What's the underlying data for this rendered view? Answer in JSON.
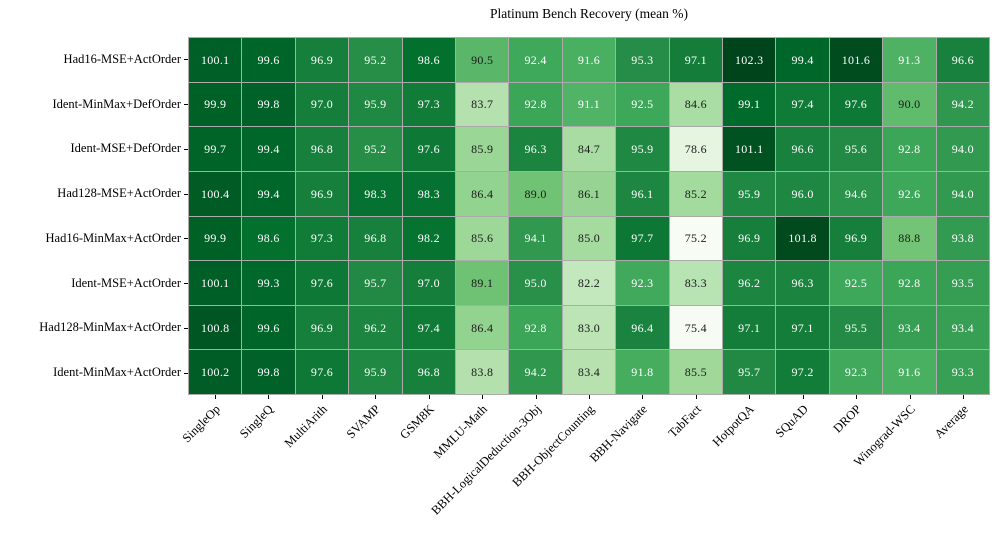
{
  "figure": {
    "background": "#ffffff",
    "text_color": "#000000"
  },
  "chart_data": {
    "type": "heatmap",
    "title": "Platinum Bench Recovery (mean %)",
    "rows": [
      "Had16-MSE+ActOrder",
      "Ident-MinMax+DefOrder",
      "Ident-MSE+DefOrder",
      "Had128-MSE+ActOrder",
      "Had16-MinMax+ActOrder",
      "Ident-MSE+ActOrder",
      "Had128-MinMax+ActOrder",
      "Ident-MinMax+ActOrder"
    ],
    "columns": [
      "SingleOp",
      "SingleQ",
      "MultiArith",
      "SVAMP",
      "GSM8K",
      "MMLU-Math",
      "BBH-LogicalDeduction-3Obj",
      "BBH-ObjectCounting",
      "BBH-Navigate",
      "TabFact",
      "HotpotQA",
      "SQuAD",
      "DROP",
      "Winograd-WSC",
      "Average"
    ],
    "values": [
      [
        100.1,
        99.6,
        96.9,
        95.2,
        98.6,
        90.5,
        92.4,
        91.6,
        95.3,
        97.1,
        102.3,
        99.4,
        101.6,
        91.3,
        96.6
      ],
      [
        99.9,
        99.8,
        97.0,
        95.9,
        97.3,
        83.7,
        92.8,
        91.1,
        92.5,
        84.6,
        99.1,
        97.4,
        97.6,
        90.0,
        94.2
      ],
      [
        99.7,
        99.4,
        96.8,
        95.2,
        97.6,
        85.9,
        96.3,
        84.7,
        95.9,
        78.6,
        101.1,
        96.6,
        95.6,
        92.8,
        94.0
      ],
      [
        100.4,
        99.4,
        96.9,
        98.3,
        98.3,
        86.4,
        89.0,
        86.1,
        96.1,
        85.2,
        95.9,
        96.0,
        94.6,
        92.6,
        94.0
      ],
      [
        99.9,
        98.6,
        97.3,
        96.8,
        98.2,
        85.6,
        94.1,
        85.0,
        97.7,
        75.2,
        96.9,
        101.8,
        96.9,
        88.8,
        93.8
      ],
      [
        100.1,
        99.3,
        97.6,
        95.7,
        97.0,
        89.1,
        95.0,
        82.2,
        92.3,
        83.3,
        96.2,
        96.3,
        92.5,
        92.8,
        93.5
      ],
      [
        100.8,
        99.6,
        96.9,
        96.2,
        97.4,
        86.4,
        92.8,
        83.0,
        96.4,
        75.4,
        97.1,
        97.1,
        95.5,
        93.4,
        93.4
      ],
      [
        100.2,
        99.8,
        97.6,
        95.9,
        96.8,
        83.8,
        94.2,
        83.4,
        91.8,
        85.5,
        95.7,
        97.2,
        92.3,
        91.6,
        93.3
      ]
    ],
    "colormap": "Greens",
    "vmin": 75.2,
    "vmax": 102.3,
    "legend_position": "none",
    "grid": "cell-borders",
    "colors": {
      "cell_text_light": "#ffffff",
      "cell_text_dark": "#1a1a1a",
      "grid_line": "#ababab"
    }
  }
}
